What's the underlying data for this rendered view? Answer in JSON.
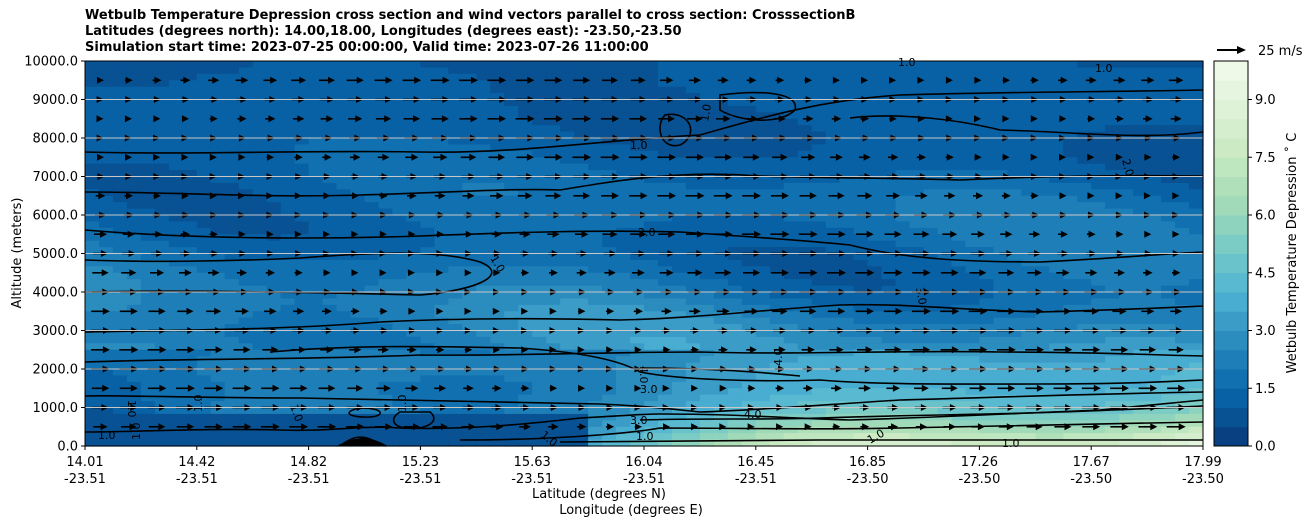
{
  "title_lines": [
    "Wetbulb Temperature Depression cross section and wind vectors parallel to cross section: CrosssectionB",
    "Latitudes (degrees north): 14.00,18.00, Longitudes (degrees east): -23.50,-23.50",
    "Simulation start time: 2023-07-25 00:00:00, Valid time: 2023-07-26 11:00:00"
  ],
  "chart_data": {
    "type": "heatmap",
    "subtype": "filled contour cross section with wind vectors and contour lines",
    "ylabel": "Altitude (meters)",
    "xlabel_lat": "Latitude (degrees N)",
    "xlabel_lon": "Longitude (degrees E)",
    "ylim": [
      0,
      10000
    ],
    "y_ticks": [
      "0.0",
      "1000.0",
      "2000.0",
      "3000.0",
      "4000.0",
      "5000.0",
      "6000.0",
      "7000.0",
      "8000.0",
      "9000.0",
      "10000.0"
    ],
    "x_ticks": [
      {
        "lat": "14.01",
        "lon": "-23.51"
      },
      {
        "lat": "14.42",
        "lon": "-23.51"
      },
      {
        "lat": "14.82",
        "lon": "-23.51"
      },
      {
        "lat": "15.23",
        "lon": "-23.51"
      },
      {
        "lat": "15.63",
        "lon": "-23.51"
      },
      {
        "lat": "16.04",
        "lon": "-23.51"
      },
      {
        "lat": "16.45",
        "lon": "-23.51"
      },
      {
        "lat": "16.85",
        "lon": "-23.50"
      },
      {
        "lat": "17.26",
        "lon": "-23.50"
      },
      {
        "lat": "17.67",
        "lon": "-23.50"
      },
      {
        "lat": "17.99",
        "lon": "-23.50"
      }
    ],
    "horizontal_gridlines": true,
    "colorbar": {
      "label": "Wetbulb Temperature Depression ˚ C",
      "range": [
        0,
        10
      ],
      "ticks": [
        "0.0",
        "1.5",
        "3.0",
        "4.5",
        "6.0",
        "7.5",
        "9.0"
      ],
      "colormap": "GnBu_r",
      "low_color": "#084081",
      "high_color": "#f7fcf0"
    },
    "wind_key": {
      "label": "25 m/s"
    },
    "contour_levels": [
      "1.0",
      "2.0",
      "3.0",
      "4.0"
    ],
    "bands": [
      {
        "alt_m": 0,
        "min_c": 0.8,
        "max_c": 10.0
      },
      {
        "alt_m": 500,
        "min_c": 0.7,
        "max_c": 7.5
      },
      {
        "alt_m": 1000,
        "min_c": 1.0,
        "max_c": 5.5
      },
      {
        "alt_m": 1500,
        "min_c": 1.2,
        "max_c": 4.5
      },
      {
        "alt_m": 2000,
        "min_c": 1.5,
        "max_c": 4.2
      },
      {
        "alt_m": 2500,
        "min_c": 1.5,
        "max_c": 3.8
      },
      {
        "alt_m": 3000,
        "min_c": 1.2,
        "max_c": 3.5
      },
      {
        "alt_m": 3500,
        "min_c": 1.0,
        "max_c": 3.3
      },
      {
        "alt_m": 4000,
        "min_c": 0.9,
        "max_c": 3.0
      },
      {
        "alt_m": 4500,
        "min_c": 0.9,
        "max_c": 2.8
      },
      {
        "alt_m": 5000,
        "min_c": 0.8,
        "max_c": 2.6
      },
      {
        "alt_m": 5500,
        "min_c": 0.8,
        "max_c": 2.5
      },
      {
        "alt_m": 6000,
        "min_c": 0.9,
        "max_c": 2.4
      },
      {
        "alt_m": 6500,
        "min_c": 0.8,
        "max_c": 2.3
      },
      {
        "alt_m": 7000,
        "min_c": 0.7,
        "max_c": 2.0
      },
      {
        "alt_m": 7500,
        "min_c": 0.6,
        "max_c": 1.8
      },
      {
        "alt_m": 8000,
        "min_c": 0.7,
        "max_c": 1.6
      },
      {
        "alt_m": 8500,
        "min_c": 0.8,
        "max_c": 1.5
      },
      {
        "alt_m": 9000,
        "min_c": 0.9,
        "max_c": 1.4
      },
      {
        "alt_m": 9500,
        "min_c": 0.9,
        "max_c": 1.3
      },
      {
        "alt_m": 10000,
        "min_c": 0.8,
        "max_c": 1.2
      }
    ]
  }
}
